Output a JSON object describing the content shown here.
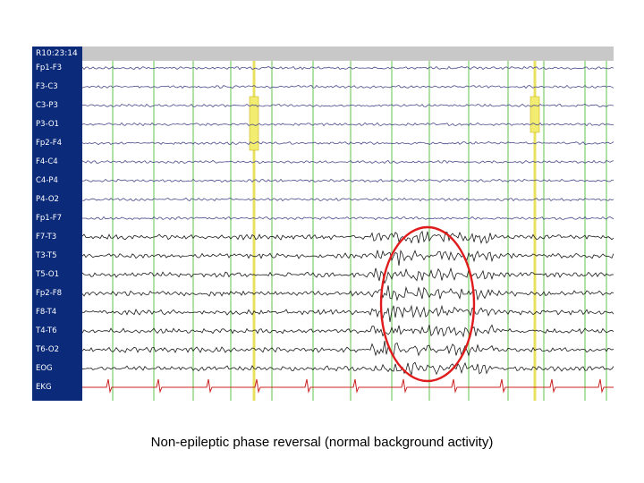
{
  "viewer": {
    "timestamp": "R10:23:14",
    "channels": [
      "Fp1-F3",
      "F3-C3",
      "C3-P3",
      "P3-O1",
      "Fp2-F4",
      "F4-C4",
      "C4-P4",
      "P4-O2",
      "Fp1-F7",
      "F7-T3",
      "T3-T5",
      "T5-O1",
      "Fp2-F8",
      "F8-T4",
      "T4-T6",
      "T6-O2",
      "EOG",
      "EKG"
    ],
    "marker_colors": {
      "grid": "#7ccf6a",
      "marker": "#e8e060",
      "trace": "#1a1a1a",
      "ekg": "#cc2020",
      "sidebar": "#0b2a7a",
      "highlight_circle": "#e01b1b"
    }
  },
  "caption": "Non-epileptic phase reversal (normal background activity)"
}
